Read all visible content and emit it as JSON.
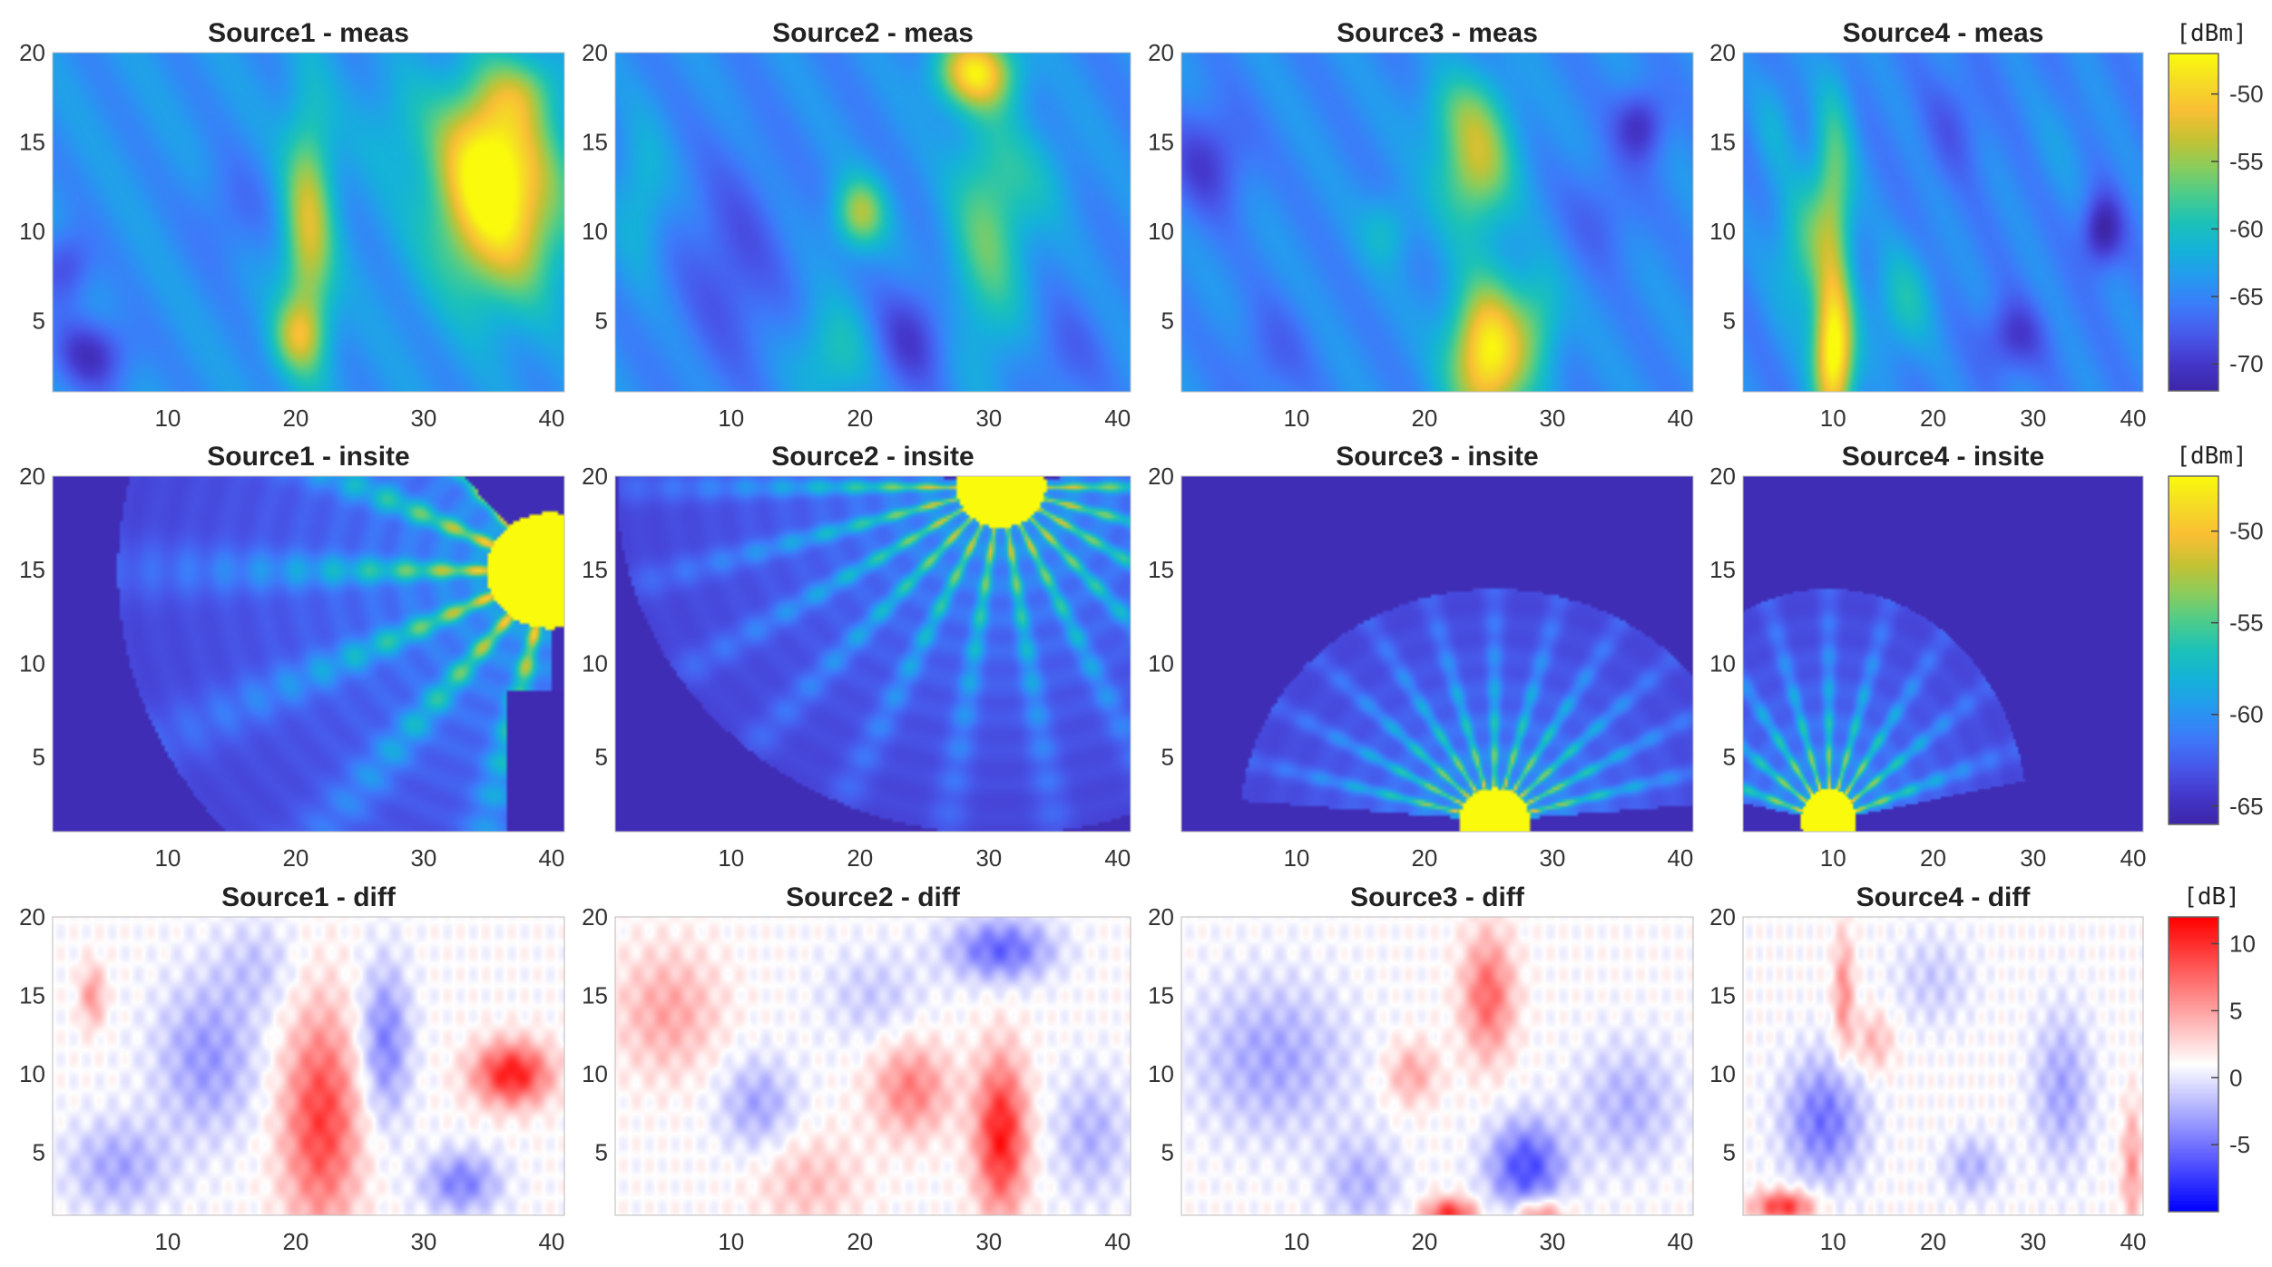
{
  "figure": {
    "row_labels": [
      "meas",
      "insite",
      "diff"
    ],
    "source_names": [
      "Source1",
      "Source2",
      "Source3",
      "Source4"
    ]
  },
  "chart_data": [
    {
      "type": "heatmap",
      "row": "meas",
      "colormap": "parula",
      "colorbar": {
        "unit": "[dBm]",
        "range": [
          -72,
          -47
        ],
        "ticks": [
          -50,
          -55,
          -60,
          -65,
          -70
        ]
      },
      "xlim": [
        1,
        41
      ],
      "ylim": [
        1,
        20
      ],
      "xticks": [
        10,
        20,
        30,
        40
      ],
      "yticks": [
        5,
        10,
        15,
        20
      ],
      "panels": [
        {
          "title": "Source1 - meas",
          "bg_level": 0.32,
          "blobs": [
            [
              36,
              11,
              5,
              5,
              0.6
            ],
            [
              35,
              15,
              4,
              4,
              0.4
            ],
            [
              21,
              10,
              2,
              7,
              0.45
            ],
            [
              20,
              4,
              2,
              2,
              0.3
            ],
            [
              4,
              3,
              3,
              2,
              -0.25
            ],
            [
              2,
              8,
              2,
              2,
              -0.2
            ],
            [
              15,
              11,
              3,
              3,
              -0.1
            ],
            [
              28,
              16,
              3,
              3,
              0.1
            ],
            [
              38,
              18,
              3,
              2,
              0.2
            ]
          ]
        },
        {
          "title": "Source2 - meas",
          "bg_level": 0.3,
          "blobs": [
            [
              29,
              19,
              3,
              2,
              0.6
            ],
            [
              30,
              10,
              3,
              7,
              0.3
            ],
            [
              20,
              11,
              2,
              2,
              0.4
            ],
            [
              18,
              3,
              3,
              3,
              0.2
            ],
            [
              10,
              8,
              4,
              6,
              -0.15
            ],
            [
              24,
              4,
              3,
              3,
              -0.2
            ],
            [
              3,
              12,
              2,
              4,
              0.15
            ],
            [
              36,
              3,
              3,
              3,
              -0.1
            ],
            [
              34,
              13,
              3,
              3,
              0.1
            ]
          ]
        },
        {
          "title": "Source3 - meas",
          "bg_level": 0.3,
          "blobs": [
            [
              25,
              3,
              3,
              4,
              0.7
            ],
            [
              24,
              14,
              3,
              4,
              0.45
            ],
            [
              29,
              5,
              2,
              3,
              0.2
            ],
            [
              17,
              10,
              2,
              2,
              0.15
            ],
            [
              3,
              14,
              3,
              3,
              -0.2
            ],
            [
              37,
              16,
              2,
              2,
              -0.25
            ],
            [
              8,
              3,
              3,
              3,
              -0.1
            ],
            [
              22,
              17,
              3,
              2,
              0.1
            ],
            [
              34,
              11,
              3,
              3,
              -0.1
            ]
          ]
        },
        {
          "title": "Source4 - meas",
          "bg_level": 0.28,
          "blobs": [
            [
              10,
              3,
              2,
              4,
              0.75
            ],
            [
              10,
              12,
              2,
              6,
              0.35
            ],
            [
              7,
              9,
              3,
              4,
              0.25
            ],
            [
              17,
              6,
              3,
              3,
              0.2
            ],
            [
              28,
              4,
              3,
              2,
              -0.2
            ],
            [
              37,
              10,
              2,
              2,
              -0.3
            ],
            [
              22,
              16,
              3,
              3,
              -0.1
            ],
            [
              33,
              15,
              3,
              3,
              0.05
            ],
            [
              4,
              16,
              2,
              3,
              0.1
            ]
          ]
        }
      ]
    },
    {
      "type": "heatmap",
      "row": "insite",
      "colormap": "parula",
      "colorbar": {
        "unit": "[dBm]",
        "range": [
          -66,
          -47
        ],
        "ticks": [
          -50,
          -55,
          -60,
          -65
        ]
      },
      "xlim": [
        1,
        41
      ],
      "ylim": [
        1,
        20
      ],
      "xticks": [
        10,
        20,
        30,
        40
      ],
      "yticks": [
        5,
        10,
        15,
        20
      ],
      "panels": [
        {
          "title": "Source1 - insite",
          "tx_x": 40,
          "tx_y": 15,
          "fan": 14,
          "span": [
            130,
            270
          ],
          "reach": 34,
          "core": 5,
          "mask_rect": [
            36.5,
            1,
            41,
            8.5
          ]
        },
        {
          "title": "Source2 - insite",
          "tx_x": 31,
          "tx_y": 19.5,
          "fan": 22,
          "span": [
            170,
            370
          ],
          "reach": 30,
          "core": 3.5
        },
        {
          "title": "Source3 - insite",
          "tx_x": 25.5,
          "tx_y": 1.5,
          "fan": 24,
          "span": [
            5,
            175
          ],
          "reach": 20,
          "core": 2.8
        },
        {
          "title": "Source4 - insite",
          "tx_x": 9.5,
          "tx_y": 1.5,
          "fan": 20,
          "span": [
            10,
            170
          ],
          "reach": 20,
          "core": 2.8
        }
      ]
    },
    {
      "type": "heatmap",
      "row": "diff",
      "colormap": "blue-white-red",
      "colorbar": {
        "unit": "[dB]",
        "range": [
          -10,
          12
        ],
        "ticks": [
          10,
          5,
          0,
          -5
        ]
      },
      "xlim": [
        1,
        41
      ],
      "ylim": [
        1,
        20
      ],
      "xticks": [
        10,
        20,
        30,
        40
      ],
      "yticks": [
        5,
        10,
        15,
        20
      ],
      "panels": [
        {
          "title": "Source1 - diff",
          "blobs": [
            [
              22,
              7,
              3,
              7,
              0.75
            ],
            [
              37,
              10,
              3,
              2,
              0.9
            ],
            [
              4,
              15,
              1,
              2,
              0.4
            ],
            [
              13,
              11,
              4,
              5,
              -0.4
            ],
            [
              27,
              12,
              2,
              5,
              -0.5
            ],
            [
              6,
              4,
              4,
              3,
              -0.35
            ],
            [
              33,
              3,
              3,
              2,
              -0.5
            ],
            [
              17,
              17,
              3,
              3,
              -0.2
            ]
          ]
        },
        {
          "title": "Source2 - diff",
          "blobs": [
            [
              31,
              6,
              2,
              5,
              0.9
            ],
            [
              5,
              14,
              4,
              4,
              0.35
            ],
            [
              24,
              9,
              3,
              3,
              0.5
            ],
            [
              16,
              3,
              4,
              3,
              0.25
            ],
            [
              31,
              18,
              4,
              2,
              -0.6
            ],
            [
              12,
              8,
              3,
              3,
              -0.35
            ],
            [
              38,
              6,
              3,
              4,
              -0.3
            ],
            [
              21,
              15,
              4,
              3,
              -0.2
            ]
          ]
        },
        {
          "title": "Source3 - diff",
          "blobs": [
            [
              25,
              15,
              2,
              4,
              0.6
            ],
            [
              22,
              1,
              2,
              1,
              0.8
            ],
            [
              29,
              1,
              2,
              1,
              0.6
            ],
            [
              19,
              10,
              2,
              2,
              0.35
            ],
            [
              28,
              4,
              3,
              3,
              -0.7
            ],
            [
              8,
              11,
              6,
              5,
              -0.35
            ],
            [
              36,
              8,
              4,
              4,
              -0.3
            ],
            [
              15,
              3,
              3,
              3,
              -0.3
            ]
          ]
        },
        {
          "title": "Source4 - diff",
          "blobs": [
            [
              5,
              1.5,
              3,
              1,
              0.8
            ],
            [
              11,
              15,
              1,
              4,
              0.45
            ],
            [
              14,
              12,
              2,
              2,
              0.3
            ],
            [
              40,
              4,
              1,
              4,
              0.4
            ],
            [
              9,
              7,
              4,
              4,
              -0.55
            ],
            [
              33,
              9,
              3,
              5,
              -0.35
            ],
            [
              24,
              4,
              3,
              2,
              -0.3
            ],
            [
              20,
              16,
              4,
              3,
              -0.2
            ]
          ]
        }
      ]
    }
  ]
}
